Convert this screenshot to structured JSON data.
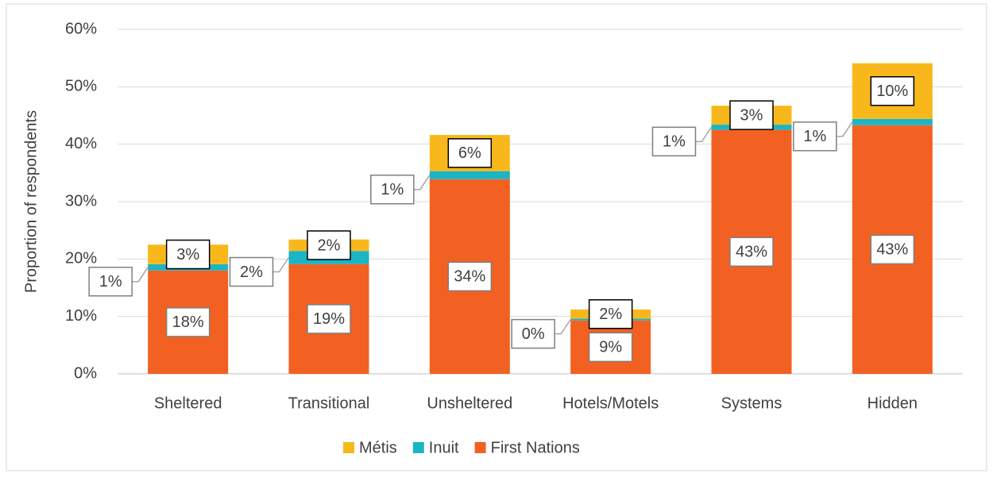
{
  "chart_data": {
    "type": "stacked_bar",
    "y_label": "Proportion of respondents",
    "categories": [
      "Sheltered",
      "Transitional",
      "Unsheltered",
      "Hotels/Motels",
      "Systems",
      "Hidden"
    ],
    "series": [
      {
        "name": "First Nations",
        "color": "#f26122",
        "values": [
          18.0,
          19.1,
          33.9,
          9.3,
          42.5,
          43.3
        ],
        "value_labels": [
          "18%",
          "19%",
          "34%",
          "9%",
          "43%",
          "43%"
        ]
      },
      {
        "name": "Inuit",
        "color": "#1bb5c5",
        "values": [
          1.1,
          2.3,
          1.4,
          0.3,
          0.9,
          1.1
        ],
        "value_labels": [
          "1%",
          "2%",
          "1%",
          "0%",
          "1%",
          "1%"
        ]
      },
      {
        "name": "Métis",
        "color": "#f8b81c",
        "values": [
          3.4,
          2.0,
          6.3,
          1.6,
          3.3,
          9.7
        ],
        "value_labels": [
          "3%",
          "2%",
          "6%",
          "2%",
          "3%",
          "10%"
        ]
      }
    ],
    "ylim": [
      0,
      60
    ],
    "yticks": [
      {
        "value": 0,
        "label": "0%"
      },
      {
        "value": 10,
        "label": "10%"
      },
      {
        "value": 20,
        "label": "20%"
      },
      {
        "value": 30,
        "label": "30%"
      },
      {
        "value": 40,
        "label": "40%"
      },
      {
        "value": 50,
        "label": "50%"
      },
      {
        "value": 60,
        "label": "60%"
      }
    ],
    "grid": true,
    "legend": "bottom"
  }
}
